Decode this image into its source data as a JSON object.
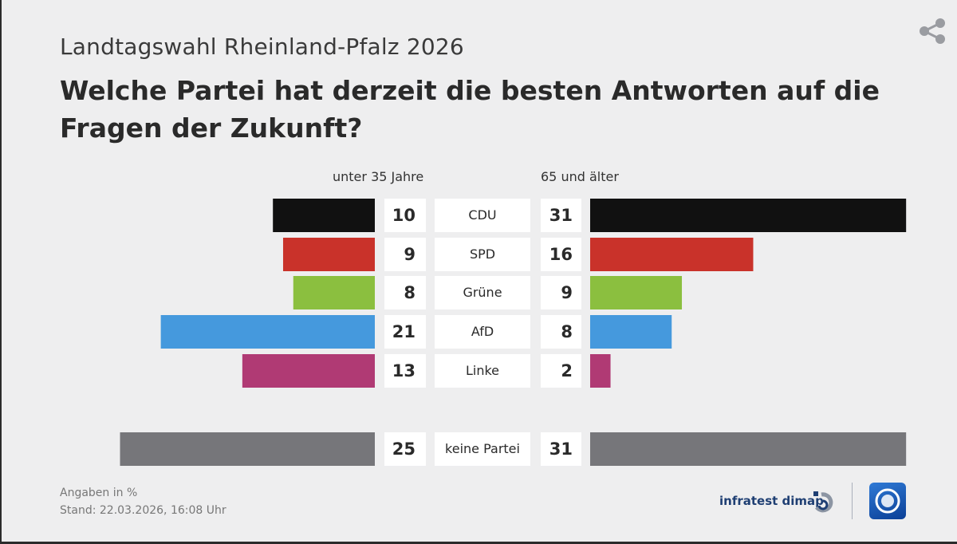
{
  "header": {
    "subtitle": "Landtagswahl Rheinland-Pfalz 2026",
    "title": "Welche Partei hat derzeit die besten Antworten auf die Fragen der Zukunft?"
  },
  "chart_data": {
    "type": "bar",
    "orientation": "horizontal-butterfly",
    "title": "Welche Partei hat derzeit die besten Antworten auf die Fragen der Zukunft?",
    "unit": "%",
    "series": [
      {
        "name": "unter 35 Jahre",
        "values": [
          10,
          9,
          8,
          21,
          13,
          25
        ]
      },
      {
        "name": "65 und älter",
        "values": [
          31,
          16,
          9,
          8,
          2,
          31
        ]
      }
    ],
    "categories": [
      "CDU",
      "SPD",
      "Grüne",
      "AfD",
      "Linke",
      "keine Partei"
    ],
    "colors": [
      "#111111",
      "#c9322a",
      "#8bbf3f",
      "#4599dd",
      "#b03a74",
      "#76767a"
    ]
  },
  "footer": {
    "note": "Angaben in %",
    "stand": "Stand:  22.03.2026, 16:08 Uhr",
    "brand": "infratest dimap"
  },
  "icons": {
    "share": "share-icon",
    "infratest_logo": "infratest-logo-icon",
    "tagesschau_logo": "tagesschau-logo-icon"
  }
}
